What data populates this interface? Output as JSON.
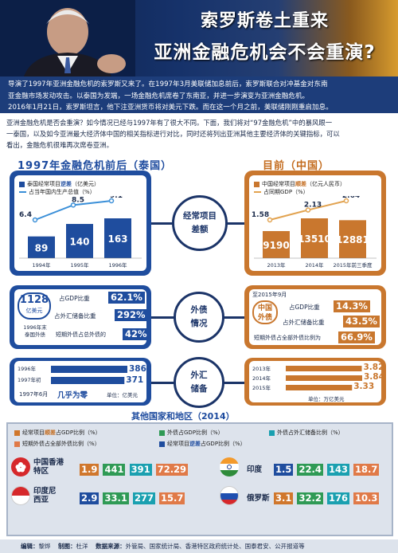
{
  "header": {
    "title_line1": "索罗斯卷土重来",
    "title_line2": "亚洲金融危机会不会重演?"
  },
  "intro": {
    "line1": "导演了1997年亚洲金融危机的索罗斯又来了。在1997年3月美联储加息前后，索罗斯联合对冲基金对东南",
    "line2": "亚金融市场发动攻击。以泰国为发端，一场金融危机席卷了东南亚，并进一步演变为亚洲金融危机。",
    "line3": "2016年1月21日，索罗斯坦言，他下注亚洲货币将对美元下跌。而在这一个月之前，美联储刚刚重启加息。"
  },
  "lead": {
    "line1": "亚洲金融危机是否会重演？如今情况已经与1997年有了很大不同。下面，我们将对“97金融危机”中的暴风眼一",
    "line2": "一泰国，以及如今亚洲最大经济体中国的相关指标进行对比，同时还将列出亚洲其他主要经济体的关键指标，可以",
    "line3": "看出，金融危机很难再次席卷亚洲。"
  },
  "left_head": "1997年金融危机前后（泰国）",
  "right_head": "目前（中国）",
  "center_labels": {
    "current_account": [
      "经常项目",
      "差额"
    ],
    "foreign_debt": [
      "外债",
      "情况"
    ],
    "fx_reserves": [
      "外汇",
      "储备"
    ]
  },
  "thailand_ca": {
    "legend_bar_pre": "泰国经常项目",
    "legend_bar_hl": "逆差",
    "legend_bar_post": "（亿美元）",
    "legend_line": "占当年国内生产总值（%）"
  },
  "china_ca": {
    "legend_bar_pre": "中国经常项目",
    "legend_bar_hl": "顺差",
    "legend_bar_post": "（亿元人民币）",
    "legend_line": "占同期GDP（%）"
  },
  "chart_data": [
    {
      "type": "bar",
      "title": "1997年金融危机前后（泰国）",
      "categories": [
        "1994年",
        "1995年",
        "1996年"
      ],
      "series": [
        {
          "name": "泰国经常项目逆差（亿美元）",
          "values": [
            89,
            140,
            163
          ]
        },
        {
          "name": "占当年国内生产总值（%）",
          "values": [
            6.4,
            8.5,
            9.1
          ]
        }
      ]
    },
    {
      "type": "bar",
      "title": "目前（中国）",
      "categories": [
        "2013年",
        "2014年",
        "2015年前三季度"
      ],
      "series": [
        {
          "name": "中国经常项目顺差（亿元人民币）",
          "values": [
            9190,
            13510,
            12881
          ]
        },
        {
          "name": "占同期GDP（%）",
          "values": [
            1.58,
            2.13,
            2.64
          ]
        }
      ]
    },
    {
      "type": "bar",
      "title": "",
      "categories": [
        "1996年",
        "1997年初",
        "1997年6月"
      ],
      "series": [
        {
          "name": "泰国外汇储备（亿美元）",
          "values": [
            386,
            371,
            0
          ]
        }
      ],
      "annotation": "几乎为零",
      "unit": "单位：亿美元"
    },
    {
      "type": "bar",
      "title": "",
      "categories": [
        "2013年",
        "2014年",
        "2015年"
      ],
      "series": [
        {
          "name": "中国外汇储备（万亿美元）",
          "values": [
            3.82,
            3.84,
            3.33
          ]
        }
      ],
      "unit": "单位：万亿美元"
    }
  ],
  "thailand_debt": {
    "amount": "1128",
    "unit": "亿美元",
    "note_line1": "1996年末",
    "note_line2": "泰国外债",
    "rows": [
      {
        "label": "占GDP比重",
        "value": "62.1%"
      },
      {
        "label": "占外汇储备比重",
        "value": "292%"
      },
      {
        "label": "短期外债占总外债的",
        "value": "42%"
      }
    ]
  },
  "china_debt": {
    "as_of": "至2015年9月",
    "name_line1": "中国",
    "name_line2": "外债",
    "rows": [
      {
        "label": "占GDP比重",
        "value": "14.3%"
      },
      {
        "label": "占外汇储备比重",
        "value": "43.5%"
      },
      {
        "label": "短期外债占全部外债比例为",
        "value": "66.9%"
      }
    ]
  },
  "thailand_fx": {
    "rows": [
      {
        "year": "1996年",
        "value": "386"
      },
      {
        "year": "1997年初",
        "value": "371"
      }
    ],
    "june_label": "1997年6月",
    "june_value": "几乎为零",
    "unit": "单位：亿美元"
  },
  "china_fx": {
    "rows": [
      {
        "year": "2013年",
        "value": "3.82"
      },
      {
        "year": "2014年",
        "value": "3.84"
      },
      {
        "year": "2015年",
        "value": "3.33"
      }
    ],
    "unit": "单位：万亿美元"
  },
  "other": {
    "title": "其他国家和地区（2014）",
    "legend": [
      {
        "pre": "经常项目",
        "hl": "顺差",
        "post": "占GDP比例（%）",
        "color": "#d0772c"
      },
      {
        "pre": "外债占GDP比例（%）",
        "hl": "",
        "post": "",
        "color": "#2f9a55"
      },
      {
        "pre": "外债占外汇储备比例（%）",
        "hl": "",
        "post": "",
        "color": "#1aa0b0"
      },
      {
        "pre": "短期外债占全部外债比例（%）",
        "hl": "",
        "post": "",
        "color": "#e07a48"
      },
      {
        "pre": "经常项目",
        "hl": "逆差",
        "post": "占GDP比例（%）",
        "color": "#1f4d9e"
      }
    ],
    "regions": [
      {
        "name_line1": "中国香港",
        "name_line2": "特区",
        "values": [
          "1.9",
          "441",
          "391",
          "72.29"
        ],
        "first_color": "#d0772c"
      },
      {
        "name_line1": "印度",
        "name_line2": "",
        "values": [
          "1.5",
          "22.4",
          "143",
          "18.7"
        ],
        "first_color": "#1f4d9e"
      },
      {
        "name_line1": "印度尼",
        "name_line2": "西亚",
        "values": [
          "2.9",
          "33.1",
          "277",
          "15.7"
        ],
        "first_color": "#1f4d9e"
      },
      {
        "name_line1": "俄罗斯",
        "name_line2": "",
        "values": [
          "3.1",
          "32.2",
          "176",
          "10.3"
        ],
        "first_color": "#d0772c"
      }
    ]
  },
  "footer": {
    "editor_label": "编辑：",
    "editor": "黎烨",
    "drawing_label": "制图：",
    "drawing": "杜洋",
    "source_label": "数据来源：",
    "source": "外管局、国家统计局、香港特区政府统计处、国泰君安、公开报道等"
  }
}
